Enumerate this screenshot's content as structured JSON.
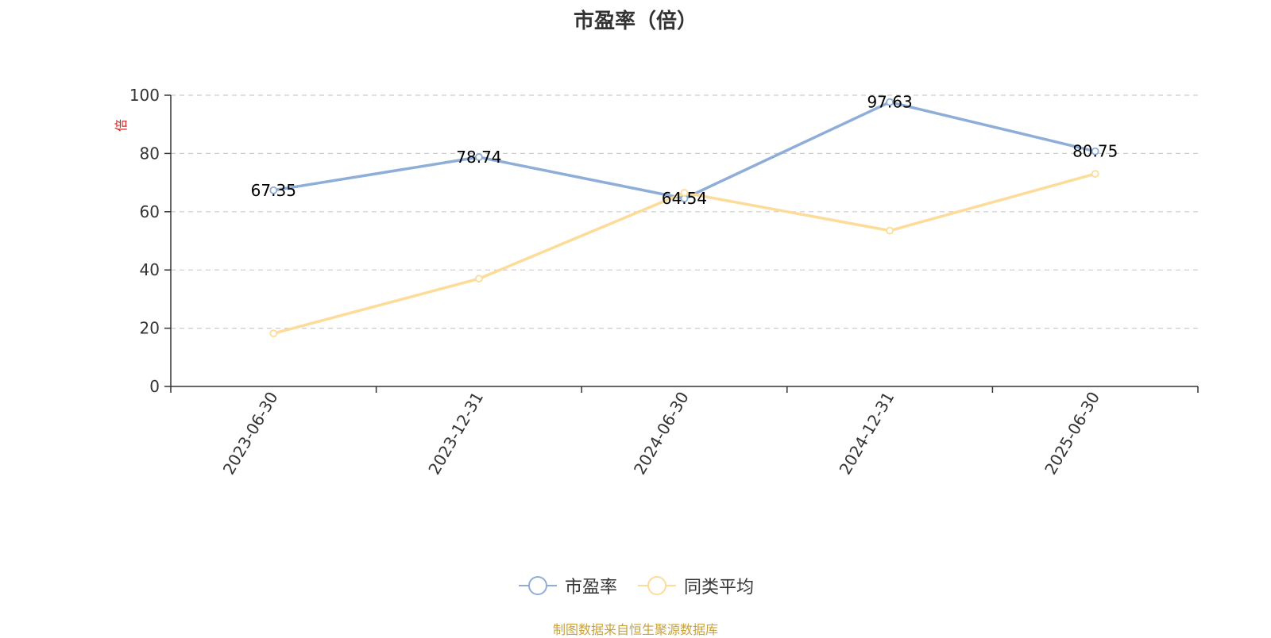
{
  "chart_data": {
    "type": "line",
    "title": "市盈率（倍）",
    "ylabel": "倍",
    "ylim": [
      0,
      100
    ],
    "yticks": [
      0,
      20,
      40,
      60,
      80,
      100
    ],
    "categories": [
      "2023-06-30",
      "2023-12-31",
      "2024-06-30",
      "2024-12-31",
      "2025-06-30"
    ],
    "grid": true,
    "legend_position": "bottom",
    "series": [
      {
        "name": "市盈率",
        "color": "#8eaed8",
        "values": [
          67.35,
          78.74,
          64.54,
          97.63,
          80.75
        ],
        "data_labels": [
          "67.35",
          "78.74",
          "64.54",
          "97.63",
          "80.75"
        ]
      },
      {
        "name": "同类平均",
        "color": "#fddb98",
        "values": [
          18.2,
          37.0,
          66.5,
          53.5,
          73.0
        ]
      }
    ]
  },
  "footer": {
    "source": "制图数据来自恒生聚源数据库"
  }
}
